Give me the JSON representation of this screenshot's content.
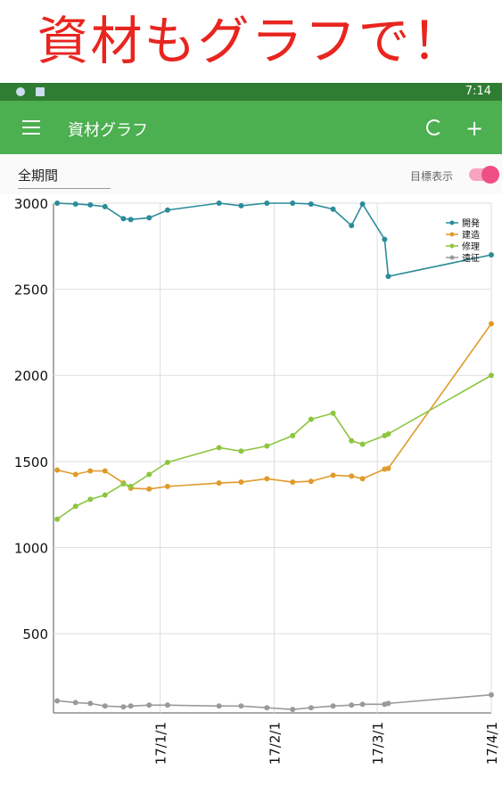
{
  "banner": {
    "title": "資材もグラフで！"
  },
  "status_bar": {
    "time": "7:14"
  },
  "app_bar": {
    "title": "資材グラフ"
  },
  "controls": {
    "period": "全期間",
    "goal_toggle": "目標表示"
  },
  "chart_data": {
    "type": "line",
    "x": [
      "16/12/4",
      "16/12/9",
      "16/12/13",
      "16/12/17",
      "16/12/22",
      "16/12/24",
      "16/12/29",
      "17/1/3",
      "17/1/17",
      "17/1/23",
      "17/1/30",
      "17/2/6",
      "17/2/11",
      "17/2/17",
      "17/2/22",
      "17/2/25",
      "17/3/3",
      "17/3/4",
      "17/4/1"
    ],
    "series": [
      {
        "name": "開発",
        "color": "#2b8c99",
        "values": [
          3000,
          2995,
          2990,
          2980,
          2910,
          2905,
          2915,
          2960,
          3000,
          2985,
          3000,
          3000,
          2995,
          2965,
          2870,
          2995,
          2790,
          2575,
          2700
        ]
      },
      {
        "name": "建造",
        "color": "#e09a2a",
        "values": [
          1450,
          1425,
          1445,
          1445,
          1375,
          1345,
          1340,
          1355,
          1375,
          1380,
          1400,
          1380,
          1385,
          1420,
          1415,
          1400,
          1455,
          1460,
          2300
        ]
      },
      {
        "name": "修理",
        "color": "#8cc63f",
        "values": [
          1165,
          1240,
          1280,
          1305,
          1370,
          1355,
          1425,
          1495,
          1580,
          1560,
          1590,
          1650,
          1745,
          1780,
          1620,
          1600,
          1650,
          1660,
          2000
        ]
      },
      {
        "name": "遠征",
        "color": "#9a9a9a",
        "values": [
          110,
          100,
          95,
          80,
          75,
          80,
          85,
          85,
          80,
          80,
          70,
          60,
          70,
          80,
          85,
          90,
          90,
          95,
          145
        ]
      }
    ],
    "xlim": [
      "16/12/3",
      "17/4/1"
    ],
    "xticks": [
      "17/1/1",
      "17/2/1",
      "17/3/1",
      "17/4/1"
    ],
    "ylim": [
      40,
      3000
    ],
    "yticks": [
      500,
      1000,
      1500,
      2000,
      2500,
      3000
    ],
    "grid": true
  }
}
